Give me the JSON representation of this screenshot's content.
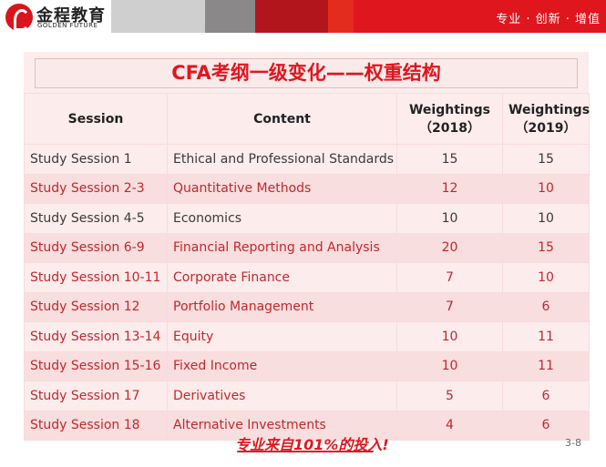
{
  "header": {
    "logo_cn": "金程教育",
    "logo_en": "GOLDEN FUTURE",
    "tagline": "专业 · 创新 · 增值",
    "colors": {
      "brand_red": "#e0161e",
      "gray": "#8a8888",
      "light_gray": "#cfcfcf"
    }
  },
  "title": "CFA考纲一级变化——权重结构",
  "table": {
    "headers": [
      "Session",
      "Content",
      "Weightings（2018）",
      "Weightings（2019）"
    ],
    "rows": [
      [
        "Study Session 1",
        "Ethical and Professional Standards",
        "15",
        "15"
      ],
      [
        "Study Session 2-3",
        "Quantitative Methods",
        "12",
        "10"
      ],
      [
        "Study Session 4-5",
        "Economics",
        "10",
        "10"
      ],
      [
        "Study Session 6-9",
        "Financial Reporting and Analysis",
        "20",
        "15"
      ],
      [
        "Study Session 10-11",
        "Corporate Finance",
        "7",
        "10"
      ],
      [
        "Study Session 12",
        "Portfolio Management",
        "7",
        "6"
      ],
      [
        "Study Session 13-14",
        "Equity",
        "10",
        "11"
      ],
      [
        "Study Session 15-16",
        "Fixed Income",
        "10",
        "11"
      ],
      [
        "Study Session 17",
        "Derivatives",
        "5",
        "6"
      ],
      [
        "Study Session 18",
        "Alternative Investments",
        "4",
        "6"
      ]
    ]
  },
  "footer": {
    "slogan": "专业来自101%的投入!",
    "page_number": "3-8"
  }
}
